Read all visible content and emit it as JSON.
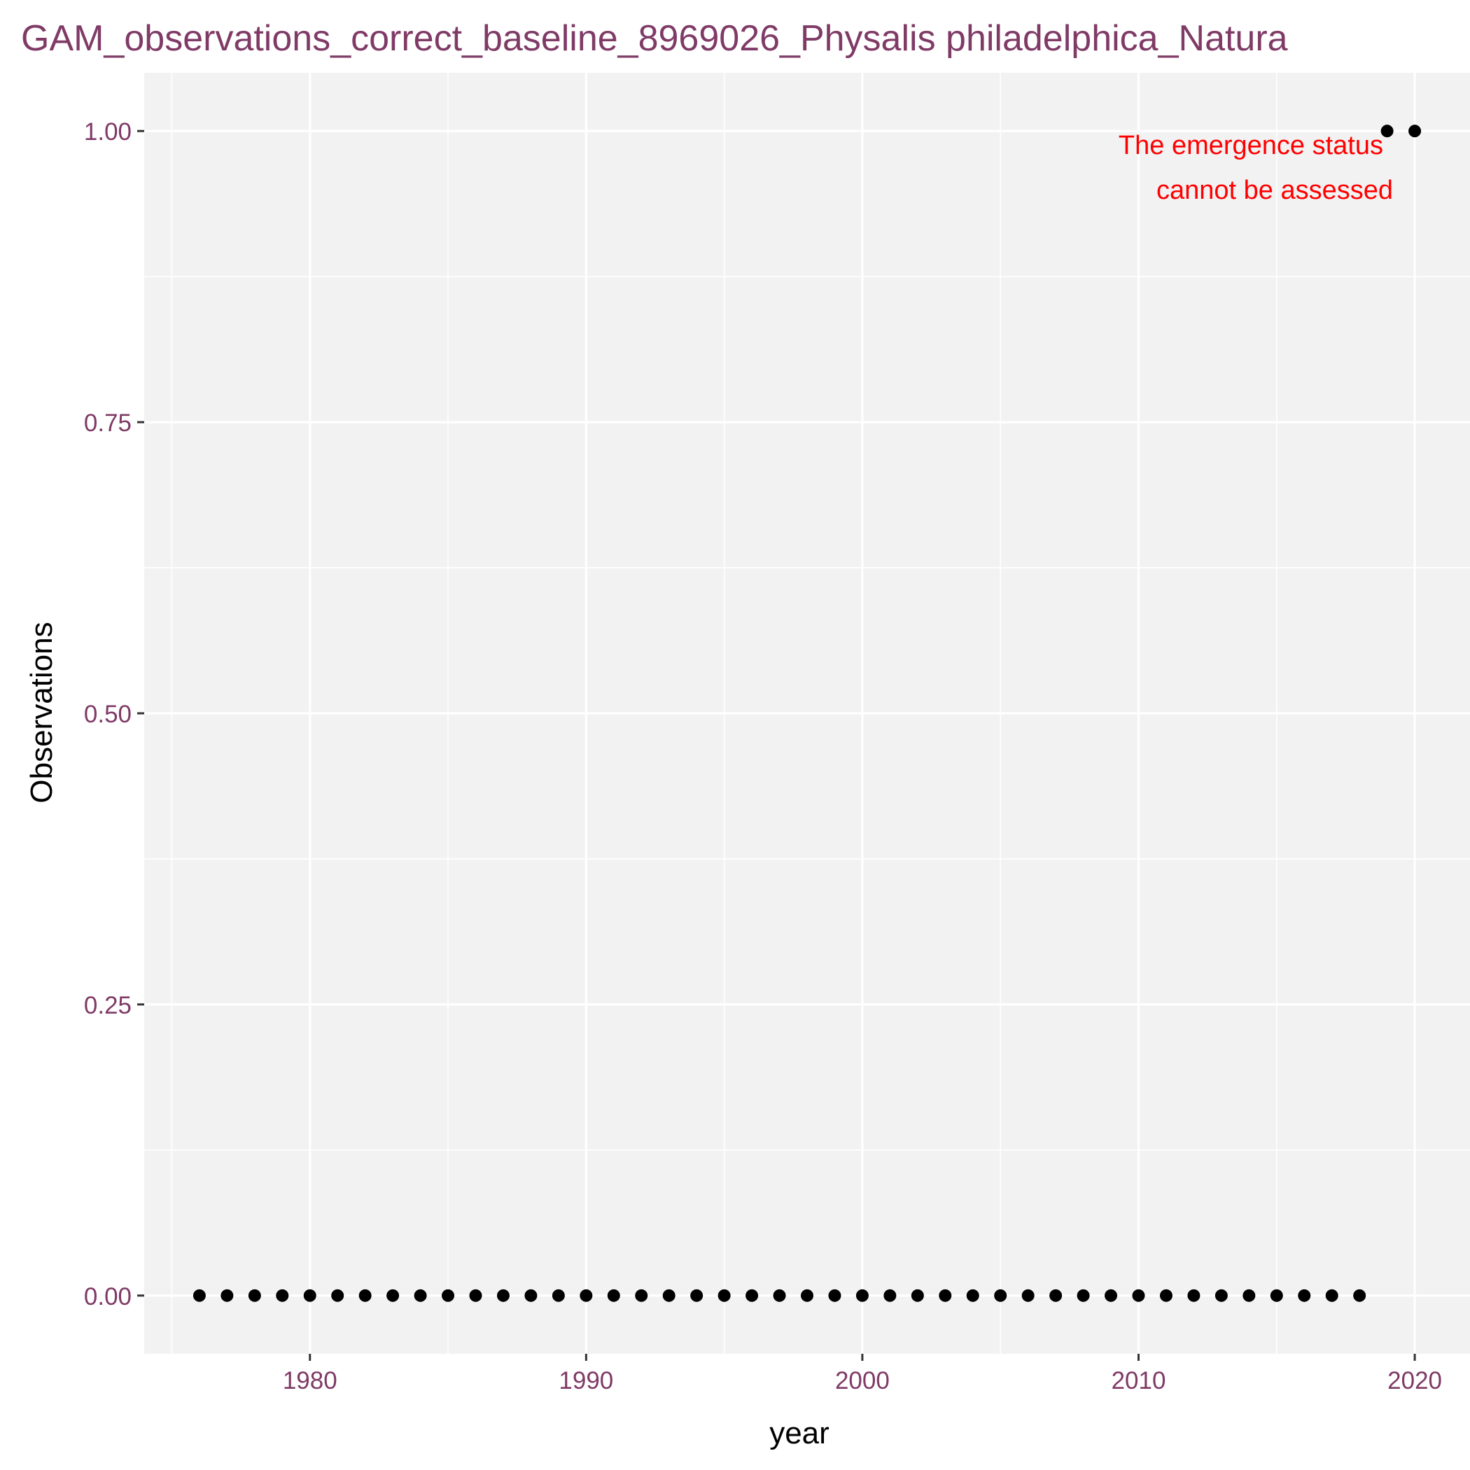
{
  "chart_data": {
    "type": "scatter",
    "title": "GAM_observations_correct_baseline_8969026_Physalis philadelphica_Natura",
    "xlabel": "year",
    "ylabel": "Observations",
    "xlim": [
      1974,
      2022
    ],
    "ylim": [
      -0.05,
      1.05
    ],
    "x_ticks": [
      1980,
      1990,
      2000,
      2010,
      2020
    ],
    "y_ticks": [
      0.0,
      0.25,
      0.5,
      0.75,
      1.0
    ],
    "x_tick_labels": [
      "1980",
      "1990",
      "2000",
      "2010",
      "2020"
    ],
    "y_tick_labels": [
      "0.00",
      "0.25",
      "0.50",
      "0.75",
      "1.00"
    ],
    "annotation": [
      "The emergence status",
      "cannot be assessed"
    ],
    "grid": true,
    "series": [
      {
        "points": [
          {
            "x": 1976,
            "y": 0
          },
          {
            "x": 1977,
            "y": 0
          },
          {
            "x": 1978,
            "y": 0
          },
          {
            "x": 1979,
            "y": 0
          },
          {
            "x": 1980,
            "y": 0
          },
          {
            "x": 1981,
            "y": 0
          },
          {
            "x": 1982,
            "y": 0
          },
          {
            "x": 1983,
            "y": 0
          },
          {
            "x": 1984,
            "y": 0
          },
          {
            "x": 1985,
            "y": 0
          },
          {
            "x": 1986,
            "y": 0
          },
          {
            "x": 1987,
            "y": 0
          },
          {
            "x": 1988,
            "y": 0
          },
          {
            "x": 1989,
            "y": 0
          },
          {
            "x": 1990,
            "y": 0
          },
          {
            "x": 1991,
            "y": 0
          },
          {
            "x": 1992,
            "y": 0
          },
          {
            "x": 1993,
            "y": 0
          },
          {
            "x": 1994,
            "y": 0
          },
          {
            "x": 1995,
            "y": 0
          },
          {
            "x": 1996,
            "y": 0
          },
          {
            "x": 1997,
            "y": 0
          },
          {
            "x": 1998,
            "y": 0
          },
          {
            "x": 1999,
            "y": 0
          },
          {
            "x": 2000,
            "y": 0
          },
          {
            "x": 2001,
            "y": 0
          },
          {
            "x": 2002,
            "y": 0
          },
          {
            "x": 2003,
            "y": 0
          },
          {
            "x": 2004,
            "y": 0
          },
          {
            "x": 2005,
            "y": 0
          },
          {
            "x": 2006,
            "y": 0
          },
          {
            "x": 2007,
            "y": 0
          },
          {
            "x": 2008,
            "y": 0
          },
          {
            "x": 2009,
            "y": 0
          },
          {
            "x": 2010,
            "y": 0
          },
          {
            "x": 2011,
            "y": 0
          },
          {
            "x": 2012,
            "y": 0
          },
          {
            "x": 2013,
            "y": 0
          },
          {
            "x": 2014,
            "y": 0
          },
          {
            "x": 2015,
            "y": 0
          },
          {
            "x": 2016,
            "y": 0
          },
          {
            "x": 2017,
            "y": 0
          },
          {
            "x": 2018,
            "y": 0
          },
          {
            "x": 2019,
            "y": 1
          },
          {
            "x": 2020,
            "y": 1
          }
        ]
      }
    ]
  },
  "colors": {
    "title": "#7f3a66",
    "tick_label": "#7f3a66",
    "panel": "#f2f2f2",
    "grid": "#ffffff",
    "point": "#000000",
    "annotation": "#ff0000",
    "axis_text": "#000000"
  }
}
